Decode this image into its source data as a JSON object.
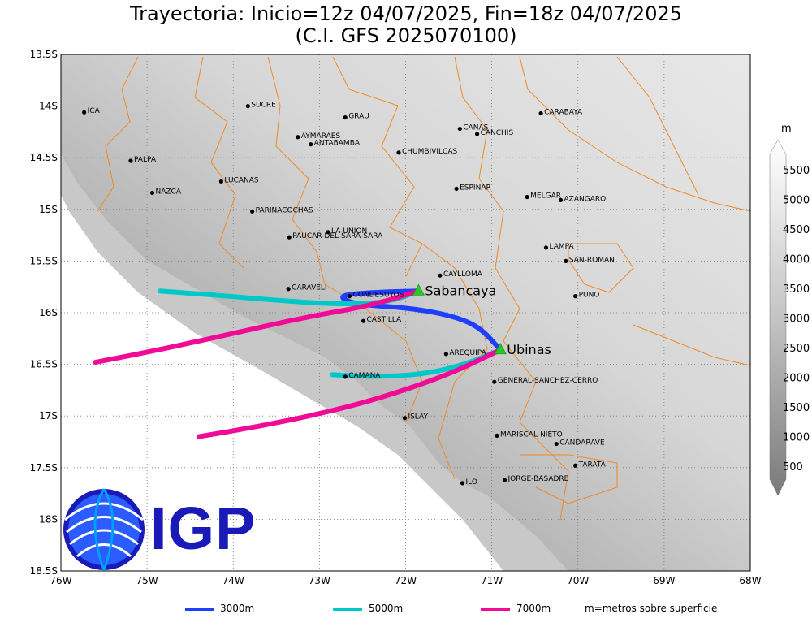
{
  "title": {
    "line1": "Trayectoria: Inicio=12z 04/07/2025, Fin=18z 04/07/2025",
    "line2": "(C.I. GFS 2025070100)"
  },
  "map": {
    "lon_range": [
      -76,
      -68
    ],
    "lat_range": [
      -18.5,
      -13.5
    ],
    "x_ticks": [
      "76W",
      "75W",
      "74W",
      "73W",
      "72W",
      "71W",
      "70W",
      "69W",
      "68W"
    ],
    "y_ticks": [
      "13.5S",
      "14S",
      "14.5S",
      "15S",
      "15.5S",
      "16S",
      "16.5S",
      "17S",
      "17.5S",
      "18S",
      "18.5S"
    ],
    "places": [
      {
        "name": "ICA",
        "lon": -75.73,
        "lat": -14.06
      },
      {
        "name": "SUCRE",
        "lon": -73.83,
        "lat": -14.0
      },
      {
        "name": "GRAU",
        "lon": -72.7,
        "lat": -14.11
      },
      {
        "name": "AYMARAES",
        "lon": -73.25,
        "lat": -14.3
      },
      {
        "name": "ANTABAMBA",
        "lon": -73.1,
        "lat": -14.37
      },
      {
        "name": "CHUMBIVILCAS",
        "lon": -72.08,
        "lat": -14.45
      },
      {
        "name": "CANAS",
        "lon": -71.37,
        "lat": -14.22
      },
      {
        "name": "CANCHIS",
        "lon": -71.17,
        "lat": -14.27
      },
      {
        "name": "CARABAYA",
        "lon": -70.43,
        "lat": -14.07
      },
      {
        "name": "PALPA",
        "lon": -75.19,
        "lat": -14.53
      },
      {
        "name": "LUCANAS",
        "lon": -74.14,
        "lat": -14.73
      },
      {
        "name": "NAZCA",
        "lon": -74.94,
        "lat": -14.84
      },
      {
        "name": "ESPINAR",
        "lon": -71.41,
        "lat": -14.8
      },
      {
        "name": "MELGAR",
        "lon": -70.59,
        "lat": -14.88
      },
      {
        "name": "AZANGARO",
        "lon": -70.2,
        "lat": -14.91
      },
      {
        "name": "PARINACOCHAS",
        "lon": -73.78,
        "lat": -15.02
      },
      {
        "name": "LA-UNION",
        "lon": -72.9,
        "lat": -15.22
      },
      {
        "name": "PAUCAR-DEL-SARA-SARA",
        "lon": -73.35,
        "lat": -15.27
      },
      {
        "name": "LAMPA",
        "lon": -70.37,
        "lat": -15.37
      },
      {
        "name": "SAN-ROMAN",
        "lon": -70.14,
        "lat": -15.5
      },
      {
        "name": "CAYLLOMA",
        "lon": -71.6,
        "lat": -15.64
      },
      {
        "name": "CARAVELI",
        "lon": -73.36,
        "lat": -15.77
      },
      {
        "name": "CONDESUYOS",
        "lon": -72.65,
        "lat": -15.84
      },
      {
        "name": "PUNO",
        "lon": -70.03,
        "lat": -15.84
      },
      {
        "name": "CASTILLA",
        "lon": -72.49,
        "lat": -16.08
      },
      {
        "name": "AREQUIPA",
        "lon": -71.53,
        "lat": -16.4
      },
      {
        "name": "CAMANA",
        "lon": -72.7,
        "lat": -16.62
      },
      {
        "name": "GENERAL-SANCHEZ-CERRO",
        "lon": -70.97,
        "lat": -16.67
      },
      {
        "name": "ISLAY",
        "lon": -72.01,
        "lat": -17.02
      },
      {
        "name": "MARISCAL-NIETO",
        "lon": -70.94,
        "lat": -17.19
      },
      {
        "name": "CANDARAVE",
        "lon": -70.25,
        "lat": -17.27
      },
      {
        "name": "TARATA",
        "lon": -70.03,
        "lat": -17.48
      },
      {
        "name": "ILO",
        "lon": -71.34,
        "lat": -17.65
      },
      {
        "name": "JORGE-BASADRE",
        "lon": -70.85,
        "lat": -17.62
      }
    ],
    "volcanoes": [
      {
        "name": "Sabancaya",
        "lon": -71.85,
        "lat": -15.79
      },
      {
        "name": "Ubinas",
        "lon": -70.9,
        "lat": -16.36
      }
    ],
    "trajectories": [
      {
        "level": "3000m",
        "color": "#1f3fff",
        "points": [
          [
            -71.85,
            -15.79
          ],
          [
            -72.3,
            -15.8
          ],
          [
            -72.8,
            -15.83
          ],
          [
            -72.6,
            -15.92
          ],
          [
            -72.0,
            -15.95
          ],
          [
            -71.5,
            -16.02
          ],
          [
            -71.15,
            -16.13
          ],
          [
            -70.9,
            -16.36
          ]
        ]
      },
      {
        "level": "5000m",
        "color": "#00c8c8",
        "points": [
          [
            -71.85,
            -15.79
          ],
          [
            -72.2,
            -15.9
          ],
          [
            -72.8,
            -15.92
          ],
          [
            -73.5,
            -15.88
          ],
          [
            -74.2,
            -15.83
          ],
          [
            -74.85,
            -15.79
          ]
        ]
      },
      {
        "level": "5000m",
        "color": "#00c8c8",
        "points": [
          [
            -70.9,
            -16.36
          ],
          [
            -71.3,
            -16.5
          ],
          [
            -71.8,
            -16.6
          ],
          [
            -72.4,
            -16.62
          ],
          [
            -72.85,
            -16.6
          ]
        ]
      },
      {
        "level": "7000m",
        "color": "#f00a96",
        "points": [
          [
            -71.85,
            -15.79
          ],
          [
            -72.4,
            -15.93
          ],
          [
            -73.2,
            -16.05
          ],
          [
            -74.0,
            -16.2
          ],
          [
            -74.8,
            -16.35
          ],
          [
            -75.6,
            -16.48
          ]
        ]
      },
      {
        "level": "7000m",
        "color": "#f00a96",
        "points": [
          [
            -70.9,
            -16.36
          ],
          [
            -71.5,
            -16.6
          ],
          [
            -72.3,
            -16.83
          ],
          [
            -73.0,
            -16.98
          ],
          [
            -73.7,
            -17.1
          ],
          [
            -74.4,
            -17.2
          ]
        ]
      }
    ]
  },
  "colorbar": {
    "unit": "m",
    "labels": [
      "5500",
      "5000",
      "4500",
      "4000",
      "3500",
      "3000",
      "2500",
      "2000",
      "1500",
      "1000",
      "500"
    ]
  },
  "legend": {
    "items": [
      {
        "label": "3000m",
        "color": "#1f3fff"
      },
      {
        "label": "5000m",
        "color": "#00c8c8"
      },
      {
        "label": "7000m",
        "color": "#f00a96"
      }
    ],
    "note": "m=metros sobre superficie"
  },
  "logo": {
    "text": "IGP"
  }
}
